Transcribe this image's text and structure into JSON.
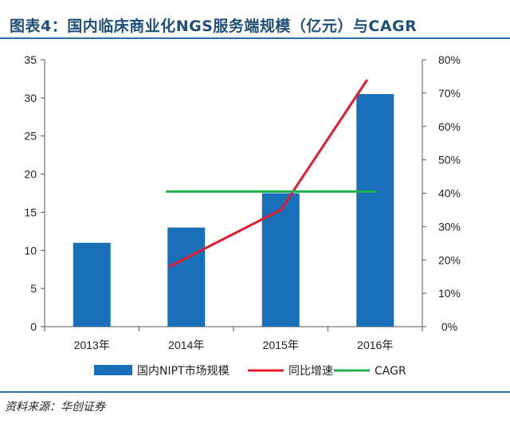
{
  "header": {
    "title": "图表4：国内临床商业化NGS服务端规模（亿元）与CAGR"
  },
  "footer": {
    "source": "资料来源：华创证券"
  },
  "colors": {
    "bar": "#1a70b8",
    "growth": "#e21b2c",
    "cagr": "#22b14c",
    "rule": "#2e6ca4",
    "title": "#1f4e79"
  },
  "chart_data": {
    "type": "bar",
    "categories": [
      "2013年",
      "2014年",
      "2015年",
      "2016年"
    ],
    "series": [
      {
        "name": "国内NIPT市场规模",
        "type": "bar",
        "axis": "left",
        "values": [
          11,
          13,
          17.5,
          30.5
        ]
      },
      {
        "name": "同比增速",
        "type": "line",
        "axis": "right",
        "values": [
          null,
          0.18,
          0.35,
          0.74
        ]
      },
      {
        "name": "CAGR",
        "type": "line",
        "axis": "right",
        "values": [
          null,
          0.405,
          0.405,
          0.405
        ]
      }
    ],
    "y_left": {
      "ylim": [
        0,
        35
      ],
      "ticks": [
        "0",
        "5",
        "10",
        "15",
        "20",
        "25",
        "30",
        "35"
      ]
    },
    "y_right": {
      "ylim": [
        0,
        0.8
      ],
      "ticks": [
        "0%",
        "10%",
        "20%",
        "30%",
        "40%",
        "50%",
        "60%",
        "70%",
        "80%"
      ]
    },
    "grid": false,
    "legend_position": "bottom"
  }
}
